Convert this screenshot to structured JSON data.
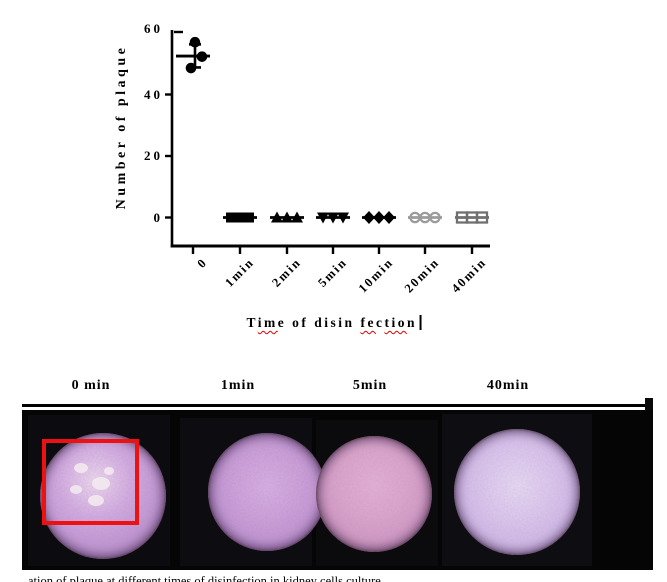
{
  "chart_data": {
    "type": "scatter",
    "title": "",
    "xlabel": "Time of disinfection",
    "ylabel": "Number of plaque",
    "ylim": [
      0,
      60
    ],
    "yticks": [
      0,
      20,
      40,
      60
    ],
    "ytick_labels": [
      "0",
      "20",
      "40",
      "60"
    ],
    "categories": [
      "0",
      "1min",
      "2min",
      "5min",
      "10min",
      "20min",
      "40min"
    ],
    "grid": false,
    "legend": "none",
    "groups": [
      {
        "category": "0",
        "values": [
          57,
          52.3,
          48.6
        ],
        "mean": 52.5,
        "error_low": 48.8,
        "error_high": 56.3,
        "marker": "circle",
        "filled": true,
        "color": "#000000",
        "offsets": [
          2,
          9,
          -2
        ]
      },
      {
        "category": "1min",
        "values": [
          0,
          0,
          0
        ],
        "mean": 0,
        "marker": "square",
        "filled": true,
        "color": "#000000",
        "offsets": [
          -9,
          0,
          9
        ]
      },
      {
        "category": "2min",
        "values": [
          0,
          0,
          0
        ],
        "mean": 0,
        "marker": "triangle-up",
        "filled": true,
        "color": "#000000",
        "offsets": [
          -10,
          0,
          10
        ]
      },
      {
        "category": "5min",
        "values": [
          0,
          0,
          0
        ],
        "mean": 0,
        "marker": "triangle-down",
        "filled": true,
        "color": "#000000",
        "offsets": [
          -10,
          0,
          10
        ]
      },
      {
        "category": "10min",
        "values": [
          0,
          0,
          0
        ],
        "mean": 0,
        "marker": "diamond",
        "filled": true,
        "color": "#000000",
        "offsets": [
          -10,
          0,
          10
        ]
      },
      {
        "category": "20min",
        "values": [
          0,
          0,
          0
        ],
        "mean": 0,
        "marker": "circle",
        "filled": false,
        "color": "#9b9b9b",
        "offsets": [
          -10,
          0,
          10
        ]
      },
      {
        "category": "40min",
        "values": [
          0,
          0,
          0
        ],
        "mean": 0,
        "marker": "square",
        "filled": false,
        "color": "#6f6f6f",
        "offsets": [
          -10,
          0,
          10
        ]
      }
    ]
  },
  "xlabel_segments": [
    {
      "text": "T",
      "misspelled": false
    },
    {
      "text": "im",
      "misspelled": true
    },
    {
      "text": "e of dis",
      "misspelled": false
    },
    {
      "text": "in ",
      "misspelled": false
    },
    {
      "text": "fe",
      "misspelled": true
    },
    {
      "text": "c",
      "misspelled": false
    },
    {
      "text": "tio",
      "misspelled": true
    },
    {
      "text": "n",
      "misspelled": false
    }
  ],
  "micrographs": {
    "labels": [
      "0 min",
      "1min",
      "5min",
      "40min"
    ],
    "wells": [
      {
        "label": "0 min",
        "description": "stained cell monolayer with plaques, red square highlight"
      },
      {
        "label": "1min",
        "description": "uniform violet stained monolayer"
      },
      {
        "label": "5min",
        "description": "uniform pinkish stained monolayer"
      },
      {
        "label": "40min",
        "description": "uniform pale lavender stained monolayer"
      }
    ],
    "highlight_color": "#ed1111"
  },
  "caption_clipped": "ation of plaque at different times of disinfection in kidney cells culture"
}
